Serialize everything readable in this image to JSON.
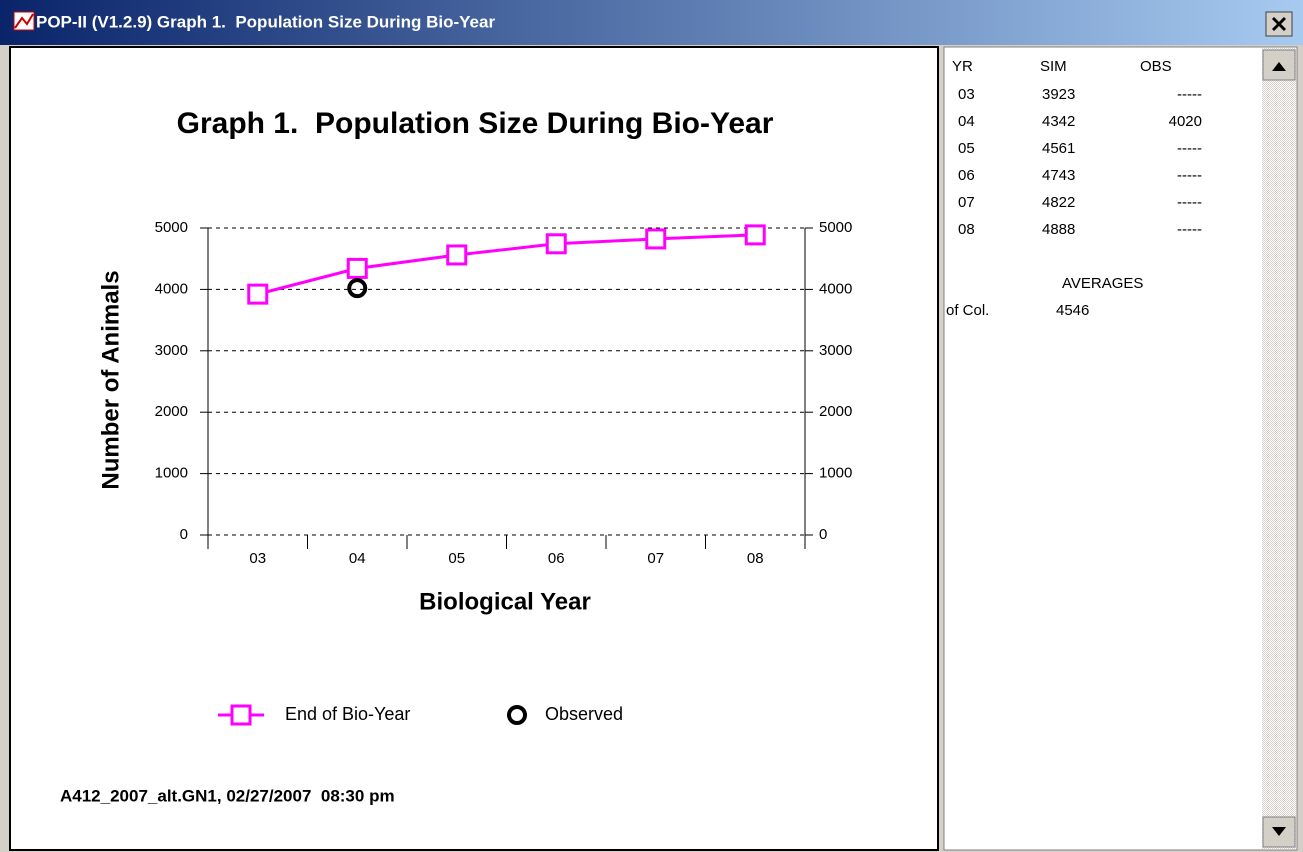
{
  "window": {
    "title": "POP-II (V1.2.9) Graph 1.  Population Size During Bio-Year"
  },
  "chart_data": {
    "type": "line",
    "title": "Graph 1.  Population Size During Bio-Year",
    "x_label": "Biological Year",
    "y_label": "Number of Animals",
    "categories": [
      "03",
      "04",
      "05",
      "06",
      "07",
      "08"
    ],
    "series": [
      {
        "name": "End of Bio-Year",
        "color": "#ff00ff",
        "marker": "square",
        "values": [
          3923,
          4342,
          4561,
          4743,
          4822,
          4888
        ]
      },
      {
        "name": "Observed",
        "color": "#000000",
        "marker": "circle",
        "values": [
          null,
          4020,
          null,
          null,
          null,
          null
        ]
      }
    ],
    "ylim": [
      0,
      5000
    ],
    "yticks": [
      0,
      1000,
      2000,
      3000,
      4000,
      5000
    ],
    "y2lim": [
      0,
      5000
    ],
    "y2ticks": [
      0,
      1000,
      2000,
      3000,
      4000,
      5000
    ],
    "grid": true,
    "legend": "bottom"
  },
  "footer": "A412_2007_alt.GN1, 02/27/2007  08:30 pm",
  "table": {
    "headers": [
      "YR",
      "SIM",
      "OBS"
    ],
    "rows": [
      [
        "03",
        "3923",
        "-----"
      ],
      [
        "04",
        "4342",
        "4020"
      ],
      [
        "05",
        "4561",
        "-----"
      ],
      [
        "06",
        "4743",
        "-----"
      ],
      [
        "07",
        "4822",
        "-----"
      ],
      [
        "08",
        "4888",
        "-----"
      ]
    ],
    "averages_title": "AVERAGES",
    "averages_label": "of Col.",
    "averages_value": "4546"
  }
}
